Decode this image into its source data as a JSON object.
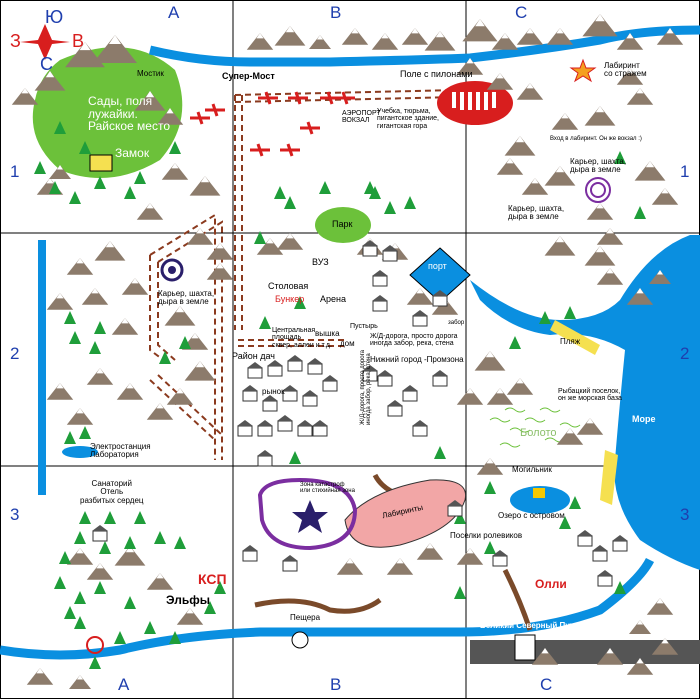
{
  "compass": {
    "north": "Ю",
    "south": "С",
    "west": "З",
    "east": "В"
  },
  "columns": {
    "top": [
      "А",
      "В",
      "С"
    ],
    "bottom": [
      "А",
      "В",
      "С"
    ]
  },
  "rows": {
    "left": [
      "1",
      "2",
      "3"
    ],
    "right": [
      "1",
      "2",
      "3"
    ]
  },
  "labels": {
    "gardens": "Сады, поля\nлужайки.\nРайское место",
    "castle": "Замок",
    "bridge_small": "Мостик",
    "super_bridge": "Супер-Мост",
    "pylons": "Поле с пилонами",
    "labyrinth_guard": "Лабиринт\nсо стражем",
    "labyrinth_entry": "Вход в лабиринт. Он же вокзал :)",
    "quarry_1": "Карьер, шахта,\nдыра в земле",
    "quarry_2": "Карьер, шахта,\nдыра в земле",
    "quarry_3": "Карьер, шахта,\nдыра в земле",
    "airport": "АЭРОПОРТ\nВОКЗАЛ",
    "school": "Учебка, тюрьма,\nпигантское здание,\nгигантская гора",
    "park": "Парк",
    "university": "ВУЗ",
    "canteen": "Столовая",
    "bunker": "Бункер",
    "arena": "Арена",
    "central_square": "Центральная\nплощадь\nсквер, аллеи и т.д.",
    "tower": "вышка",
    "house": "дом",
    "wasteland": "Пустырь",
    "port": "порт",
    "fence": "забор",
    "railway": "Ж/Д-дорога, просто дорога\nиногда забор, река, стена",
    "railway_vertical": "Ж/Д-дорога, просто дорога\nиногда забор, река, стена",
    "dacha": "Район дач",
    "market": "рынок",
    "industrial": "Нижний город -Промзона",
    "beach": "Пляж",
    "fishing": "Рыбацкий поселок,\nон же морская база",
    "sea": "Море",
    "swamp": "Болото",
    "cemetery": "Могильник",
    "power_station": "Электростанция\nЛаборатория",
    "sanatorium": "Санаторий\nОтель\nразбитых сердец",
    "ksp": "КСП",
    "elves": "Эльфы",
    "disaster_zone": "Зона катастроф\nили стихийная зона",
    "labyrinths": "Лабиринты",
    "lake": "Озеро с островом",
    "roleplayers": "Поселки ролевиков",
    "olli": "Олли",
    "cave": "Пещера",
    "great_road": "Великий Северный Путь"
  },
  "colors": {
    "mountain": "#8c7b6b",
    "mountain_snow": "#ffffff",
    "water": "#0a8fe0",
    "grass": "#6cc13a",
    "tree": "#1f9e3a",
    "road": "#8b3a1e",
    "grid": "#000000",
    "label_blue": "#1f3fae",
    "accent_red": "#d81e1e",
    "labyrinth_pink": "#f2a6a6",
    "disaster_purple": "#7b2ea0"
  }
}
